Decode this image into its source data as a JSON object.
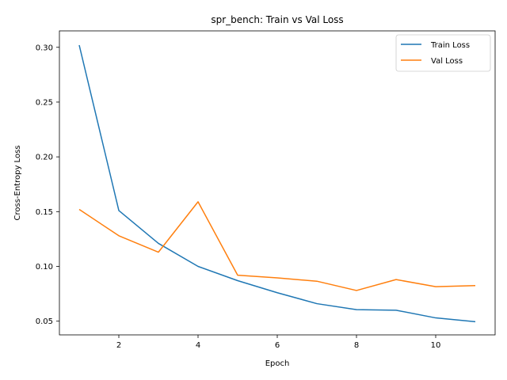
{
  "chart_data": {
    "type": "line",
    "title": "spr_bench: Train vs Val Loss",
    "xlabel": "Epoch",
    "ylabel": "Cross-Entropy Loss",
    "xlim": [
      0.5,
      11.5
    ],
    "ylim": [
      0.0375,
      0.315
    ],
    "xticks": [
      2,
      4,
      6,
      8,
      10
    ],
    "yticks": [
      0.05,
      0.1,
      0.15,
      0.2,
      0.25,
      0.3
    ],
    "ytick_labels": [
      "0.05",
      "0.10",
      "0.15",
      "0.20",
      "0.25",
      "0.30"
    ],
    "x": [
      1,
      2,
      3,
      4,
      5,
      6,
      7,
      8,
      9,
      10,
      11
    ],
    "series": [
      {
        "name": "Train Loss",
        "color": "#1f77b4",
        "values": [
          0.302,
          0.151,
          0.121,
          0.1,
          0.087,
          0.076,
          0.066,
          0.0605,
          0.06,
          0.053,
          0.0495
        ]
      },
      {
        "name": "Val Loss",
        "color": "#ff7f0e",
        "values": [
          0.152,
          0.128,
          0.113,
          0.159,
          0.092,
          0.0895,
          0.0865,
          0.078,
          0.088,
          0.0815,
          0.0825
        ]
      }
    ],
    "legend": "top-right",
    "grid": false
  }
}
